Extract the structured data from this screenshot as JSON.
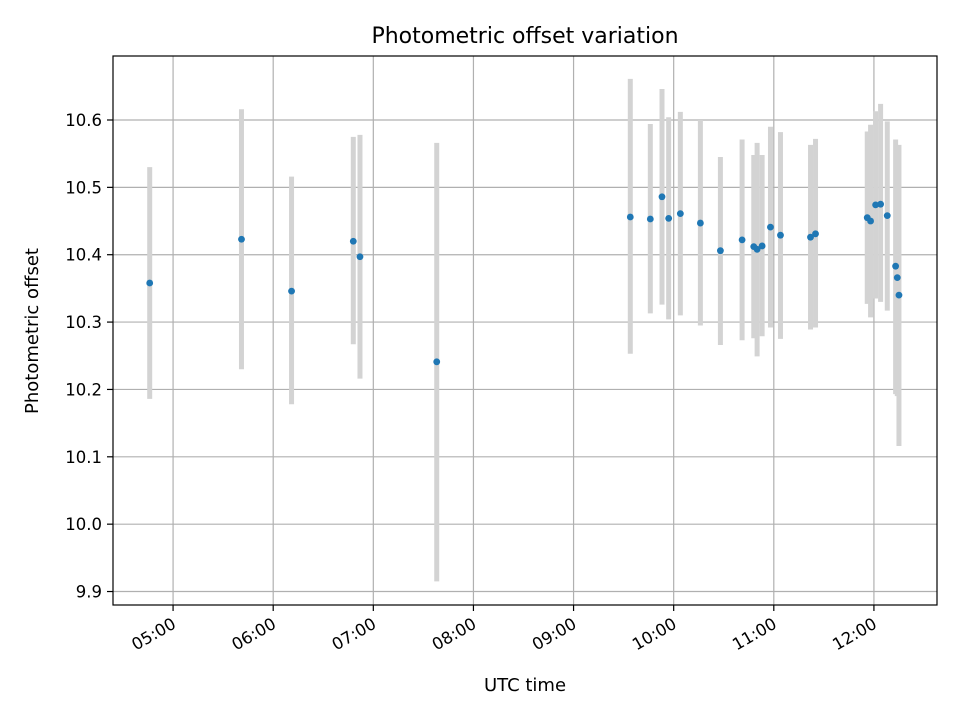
{
  "chart_data": {
    "type": "scatter",
    "title": "Photometric offset variation",
    "xlabel": "UTC time",
    "ylabel": "Photometric offset",
    "x_ticks": [
      "05:00",
      "06:00",
      "07:00",
      "08:00",
      "09:00",
      "10:00",
      "11:00",
      "12:00"
    ],
    "x_ticks_hours": [
      5,
      6,
      7,
      8,
      9,
      10,
      11,
      12
    ],
    "xlim_hours": [
      4.4,
      12.63
    ],
    "ylim": [
      9.88,
      10.695
    ],
    "y_ticks": [
      "9.9",
      "10.0",
      "10.1",
      "10.2",
      "10.3",
      "10.4",
      "10.5",
      "10.6"
    ],
    "y_ticks_values": [
      9.9,
      10.0,
      10.1,
      10.2,
      10.3,
      10.4,
      10.5,
      10.6
    ],
    "grid": true,
    "colors": {
      "marker": "#1f77b4",
      "errorbar": "#d3d3d3",
      "grid": "#b0b0b0",
      "axes": "#000000"
    },
    "points": [
      {
        "t": "04:46",
        "y": 10.358,
        "lo": 10.186,
        "hi": 10.53
      },
      {
        "t": "05:41",
        "y": 10.423,
        "lo": 10.23,
        "hi": 10.616
      },
      {
        "t": "06:11",
        "y": 10.346,
        "lo": 10.178,
        "hi": 10.516
      },
      {
        "t": "06:48",
        "y": 10.42,
        "lo": 10.267,
        "hi": 10.575
      },
      {
        "t": "06:52",
        "y": 10.397,
        "lo": 10.216,
        "hi": 10.578
      },
      {
        "t": "07:38",
        "y": 10.241,
        "lo": 9.915,
        "hi": 10.566
      },
      {
        "t": "09:34",
        "y": 10.456,
        "lo": 10.253,
        "hi": 10.661
      },
      {
        "t": "09:46",
        "y": 10.453,
        "lo": 10.313,
        "hi": 10.594
      },
      {
        "t": "09:53",
        "y": 10.486,
        "lo": 10.326,
        "hi": 10.646
      },
      {
        "t": "09:57",
        "y": 10.454,
        "lo": 10.304,
        "hi": 10.604
      },
      {
        "t": "10:04",
        "y": 10.461,
        "lo": 10.31,
        "hi": 10.612
      },
      {
        "t": "10:16",
        "y": 10.447,
        "lo": 10.295,
        "hi": 10.6
      },
      {
        "t": "10:28",
        "y": 10.406,
        "lo": 10.266,
        "hi": 10.545
      },
      {
        "t": "10:41",
        "y": 10.422,
        "lo": 10.273,
        "hi": 10.571
      },
      {
        "t": "10:48",
        "y": 10.412,
        "lo": 10.276,
        "hi": 10.548
      },
      {
        "t": "10:50",
        "y": 10.408,
        "lo": 10.249,
        "hi": 10.566
      },
      {
        "t": "10:53",
        "y": 10.413,
        "lo": 10.279,
        "hi": 10.548
      },
      {
        "t": "10:58",
        "y": 10.441,
        "lo": 10.292,
        "hi": 10.59
      },
      {
        "t": "11:04",
        "y": 10.429,
        "lo": 10.275,
        "hi": 10.582
      },
      {
        "t": "11:22",
        "y": 10.426,
        "lo": 10.289,
        "hi": 10.563
      },
      {
        "t": "11:25",
        "y": 10.431,
        "lo": 10.292,
        "hi": 10.572
      },
      {
        "t": "11:56",
        "y": 10.455,
        "lo": 10.327,
        "hi": 10.583
      },
      {
        "t": "11:58",
        "y": 10.45,
        "lo": 10.307,
        "hi": 10.593
      },
      {
        "t": "12:01",
        "y": 10.474,
        "lo": 10.335,
        "hi": 10.613
      },
      {
        "t": "12:04",
        "y": 10.475,
        "lo": 10.33,
        "hi": 10.624
      },
      {
        "t": "12:08",
        "y": 10.458,
        "lo": 10.317,
        "hi": 10.598
      },
      {
        "t": "12:13",
        "y": 10.383,
        "lo": 10.193,
        "hi": 10.571
      },
      {
        "t": "12:14",
        "y": 10.366,
        "lo": 10.19,
        "hi": 10.54
      },
      {
        "t": "12:15",
        "y": 10.34,
        "lo": 10.116,
        "hi": 10.563
      }
    ]
  }
}
